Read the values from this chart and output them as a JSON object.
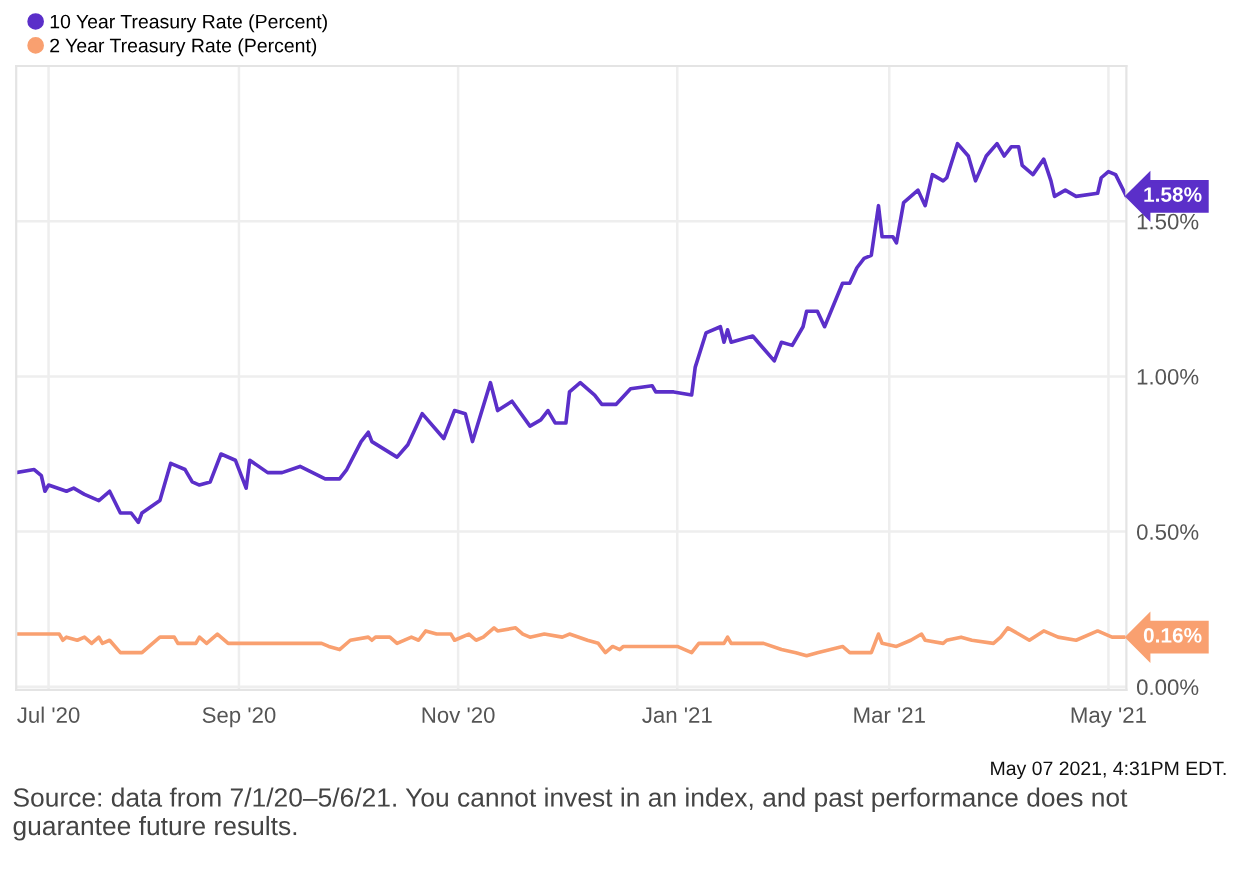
{
  "chart_data": {
    "type": "line",
    "x": [
      "2020-07-01",
      "2020-07-06",
      "2020-07-08",
      "2020-07-09",
      "2020-07-10",
      "2020-07-15",
      "2020-07-17",
      "2020-07-20",
      "2020-07-24",
      "2020-07-27",
      "2020-07-30",
      "2020-08-02",
      "2020-08-04",
      "2020-08-05",
      "2020-08-10",
      "2020-08-13",
      "2020-08-17",
      "2020-08-19",
      "2020-08-21",
      "2020-08-24",
      "2020-08-27",
      "2020-08-31",
      "2020-09-03",
      "2020-09-04",
      "2020-09-09",
      "2020-09-13",
      "2020-09-18",
      "2020-09-25",
      "2020-09-29",
      "2020-10-01",
      "2020-10-05",
      "2020-10-07",
      "2020-10-08",
      "2020-10-15",
      "2020-10-18",
      "2020-10-22",
      "2020-10-28",
      "2020-10-31",
      "2020-11-03",
      "2020-11-05",
      "2020-11-10",
      "2020-11-12",
      "2020-11-16",
      "2020-11-21",
      "2020-11-24",
      "2020-11-26",
      "2020-11-28",
      "2020-12-01",
      "2020-12-02",
      "2020-12-05",
      "2020-12-09",
      "2020-12-11",
      "2020-12-15",
      "2020-12-19",
      "2020-12-25",
      "2020-12-26",
      "2020-12-31",
      "2021-01-05",
      "2021-01-06",
      "2021-01-09",
      "2021-01-13",
      "2021-01-14",
      "2021-01-15",
      "2021-01-16",
      "2021-01-22",
      "2021-01-25",
      "2021-01-28",
      "2021-01-30",
      "2021-02-02",
      "2021-02-05",
      "2021-02-06",
      "2021-02-09",
      "2021-02-11",
      "2021-02-16",
      "2021-02-18",
      "2021-02-20",
      "2021-02-22",
      "2021-02-24",
      "2021-02-26",
      "2021-02-27",
      "2021-03-02",
      "2021-03-03",
      "2021-03-05",
      "2021-03-09",
      "2021-03-11",
      "2021-03-13",
      "2021-03-16",
      "2021-03-17",
      "2021-03-20",
      "2021-03-23",
      "2021-03-25",
      "2021-03-28",
      "2021-03-31",
      "2021-04-02",
      "2021-04-04",
      "2021-04-06",
      "2021-04-07",
      "2021-04-10",
      "2021-04-13",
      "2021-04-15",
      "2021-04-16",
      "2021-04-19",
      "2021-04-22",
      "2021-04-28",
      "2021-04-29",
      "2021-05-01",
      "2021-05-03",
      "2021-05-06"
    ],
    "series": [
      {
        "name": "10 Year Treasury Rate (Percent)",
        "color": "#5b2fc9",
        "values": [
          0.69,
          0.7,
          0.68,
          0.63,
          0.65,
          0.63,
          0.64,
          0.62,
          0.6,
          0.63,
          0.56,
          0.56,
          0.53,
          0.56,
          0.6,
          0.72,
          0.7,
          0.66,
          0.65,
          0.66,
          0.75,
          0.73,
          0.64,
          0.73,
          0.69,
          0.69,
          0.71,
          0.67,
          0.67,
          0.7,
          0.79,
          0.82,
          0.79,
          0.74,
          0.78,
          0.88,
          0.8,
          0.89,
          0.88,
          0.79,
          0.98,
          0.89,
          0.92,
          0.84,
          0.86,
          0.89,
          0.85,
          0.85,
          0.95,
          0.98,
          0.94,
          0.91,
          0.91,
          0.96,
          0.97,
          0.95,
          0.95,
          0.94,
          1.03,
          1.14,
          1.16,
          1.11,
          1.15,
          1.11,
          1.13,
          1.09,
          1.05,
          1.11,
          1.1,
          1.16,
          1.21,
          1.21,
          1.16,
          1.3,
          1.3,
          1.35,
          1.38,
          1.39,
          1.55,
          1.45,
          1.45,
          1.43,
          1.56,
          1.6,
          1.55,
          1.65,
          1.63,
          1.64,
          1.75,
          1.71,
          1.63,
          1.71,
          1.75,
          1.71,
          1.74,
          1.74,
          1.68,
          1.65,
          1.7,
          1.63,
          1.58,
          1.6,
          1.58,
          1.59,
          1.64,
          1.66,
          1.65,
          1.58
        ]
      },
      {
        "name": "2 Year Treasury Rate (Percent)",
        "color": "#f9a070",
        "x": [
          "2020-07-01",
          "2020-07-13",
          "2020-07-14",
          "2020-07-15",
          "2020-07-18",
          "2020-07-20",
          "2020-07-22",
          "2020-07-24",
          "2020-07-25",
          "2020-07-27",
          "2020-07-30",
          "2020-08-05",
          "2020-08-07",
          "2020-08-10",
          "2020-08-14",
          "2020-08-15",
          "2020-08-20",
          "2020-08-21",
          "2020-08-23",
          "2020-08-26",
          "2020-08-29",
          "2020-09-09",
          "2020-09-13",
          "2020-09-17",
          "2020-09-24",
          "2020-09-26",
          "2020-09-29",
          "2020-10-02",
          "2020-10-07",
          "2020-10-08",
          "2020-10-09",
          "2020-10-13",
          "2020-10-15",
          "2020-10-19",
          "2020-10-21",
          "2020-10-23",
          "2020-10-26",
          "2020-10-30",
          "2020-10-31",
          "2020-11-04",
          "2020-11-06",
          "2020-11-08",
          "2020-11-11",
          "2020-11-12",
          "2020-11-17",
          "2020-11-19",
          "2020-11-21",
          "2020-11-25",
          "2020-11-30",
          "2020-12-02",
          "2020-12-07",
          "2020-12-10",
          "2020-12-12",
          "2020-12-14",
          "2020-12-16",
          "2020-12-17",
          "2020-12-23",
          "2020-12-31",
          "2021-01-01",
          "2021-01-05",
          "2021-01-07",
          "2021-01-14",
          "2021-01-15",
          "2021-01-16",
          "2021-01-20",
          "2021-01-25",
          "2021-01-30",
          "2021-02-03",
          "2021-02-06",
          "2021-02-09",
          "2021-02-16",
          "2021-02-18",
          "2021-02-24",
          "2021-02-26",
          "2021-02-27",
          "2021-03-03",
          "2021-03-07",
          "2021-03-10",
          "2021-03-11",
          "2021-03-16",
          "2021-03-17",
          "2021-03-21",
          "2021-03-24",
          "2021-03-30",
          "2021-04-01",
          "2021-04-03",
          "2021-04-06",
          "2021-04-09",
          "2021-04-13",
          "2021-04-17",
          "2021-04-22",
          "2021-04-28",
          "2021-05-02",
          "2021-05-06"
        ],
        "values": [
          0.17,
          0.17,
          0.15,
          0.16,
          0.15,
          0.16,
          0.14,
          0.16,
          0.14,
          0.15,
          0.11,
          0.11,
          0.13,
          0.16,
          0.16,
          0.14,
          0.14,
          0.16,
          0.14,
          0.17,
          0.14,
          0.14,
          0.14,
          0.14,
          0.14,
          0.13,
          0.12,
          0.15,
          0.16,
          0.15,
          0.16,
          0.16,
          0.14,
          0.16,
          0.15,
          0.18,
          0.17,
          0.17,
          0.15,
          0.17,
          0.15,
          0.16,
          0.19,
          0.18,
          0.19,
          0.17,
          0.16,
          0.17,
          0.16,
          0.17,
          0.15,
          0.14,
          0.11,
          0.13,
          0.12,
          0.13,
          0.13,
          0.13,
          0.13,
          0.11,
          0.14,
          0.14,
          0.16,
          0.14,
          0.14,
          0.14,
          0.12,
          0.11,
          0.1,
          0.11,
          0.13,
          0.11,
          0.11,
          0.17,
          0.14,
          0.13,
          0.15,
          0.17,
          0.15,
          0.14,
          0.15,
          0.16,
          0.15,
          0.14,
          0.16,
          0.19,
          0.17,
          0.15,
          0.18,
          0.16,
          0.15,
          0.18,
          0.16,
          0.16
        ]
      }
    ],
    "xlim": [
      "2020-07-01",
      "2021-05-06"
    ],
    "xticks": [
      {
        "value": "2020-07-10",
        "label": "Jul '20"
      },
      {
        "value": "2020-09-01",
        "label": "Sep '20"
      },
      {
        "value": "2020-11-01",
        "label": "Nov '20"
      },
      {
        "value": "2021-01-01",
        "label": "Jan '21"
      },
      {
        "value": "2021-03-01",
        "label": "Mar '21"
      },
      {
        "value": "2021-05-01",
        "label": "May '21"
      }
    ],
    "ylim": [
      -0.01,
      2.0
    ],
    "yticks": [
      {
        "value": 0,
        "label": "0.00%"
      },
      {
        "value": 0.5,
        "label": "0.50%"
      },
      {
        "value": 1.0,
        "label": "1.00%"
      },
      {
        "value": 1.5,
        "label": "1.50%"
      }
    ],
    "grid": true,
    "legend": "top left",
    "marker": "none",
    "line_style": "solid",
    "annotations": [
      {
        "text": "1.58%",
        "x": "2021-05-06",
        "y": 1.58
      },
      {
        "text": "0.16%",
        "x": "2021-05-06",
        "y": 0.16
      },
      "May 07 2021, 4:31PM EDT.",
      "Source: data from 7/1/20–5/6/21. You cannot invest in an index, and past performance does not guarantee future results."
    ]
  }
}
